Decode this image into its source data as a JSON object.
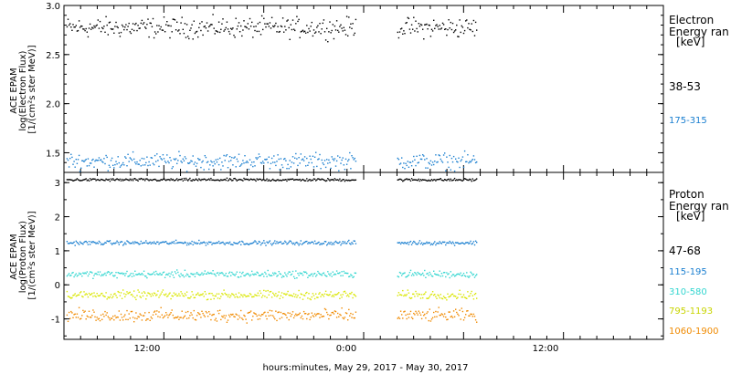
{
  "xlabel": "hours:minutes, May 29, 2017 - May 30, 2017",
  "x_ticks": [
    "12:00",
    "0:00",
    "12:00"
  ],
  "chart_data": [
    {
      "type": "scatter",
      "ylabel_lines": [
        "ACE EPAM",
        "log(Electron Flux)",
        "[1/(cm²s ster MeV)]"
      ],
      "ylim": [
        1.3,
        3.0
      ],
      "y_ticks": [
        "1.5",
        "2.0",
        "2.5",
        "3.0"
      ],
      "x_range_hours": [
        6,
        42
      ],
      "gap_hours": [
        23.5,
        26.0
      ],
      "data_end_hours": 30.8,
      "legend_title": [
        "Electron",
        "Energy ran",
        "[keV]"
      ],
      "series": [
        {
          "name": "38-53",
          "color": "#000000",
          "mean": 2.78,
          "scatter": 0.05
        },
        {
          "name": "175-315",
          "color": "#1a7fd0",
          "mean": 1.42,
          "scatter": 0.04
        }
      ]
    },
    {
      "type": "scatter",
      "ylabel_lines": [
        "ACE EPAM",
        "log(Proton Flux)",
        "[1/(cm²s ster MeV)]"
      ],
      "ylim": [
        -1.6,
        3.3
      ],
      "y_ticks": [
        "-1",
        "0",
        "1",
        "2",
        "3"
      ],
      "x_range_hours": [
        6,
        42
      ],
      "gap_hours": [
        23.5,
        26.0
      ],
      "data_end_hours": 30.8,
      "legend_title": [
        "Proton",
        "Energy ran",
        "[keV]"
      ],
      "series": [
        {
          "name": "47-68",
          "color": "#000000",
          "mean": 3.1,
          "scatter": 0.02
        },
        {
          "name": "115-195",
          "color": "#1a7fd0",
          "mean": 1.25,
          "scatter": 0.03
        },
        {
          "name": "310-580",
          "color": "#33d6d0",
          "mean": 0.33,
          "scatter": 0.05
        },
        {
          "name": "795-1193",
          "color": "#d9e600",
          "mean": -0.28,
          "scatter": 0.06
        },
        {
          "name": "1060-1900",
          "color": "#f08a00",
          "mean": -0.88,
          "scatter": 0.09
        }
      ]
    }
  ]
}
